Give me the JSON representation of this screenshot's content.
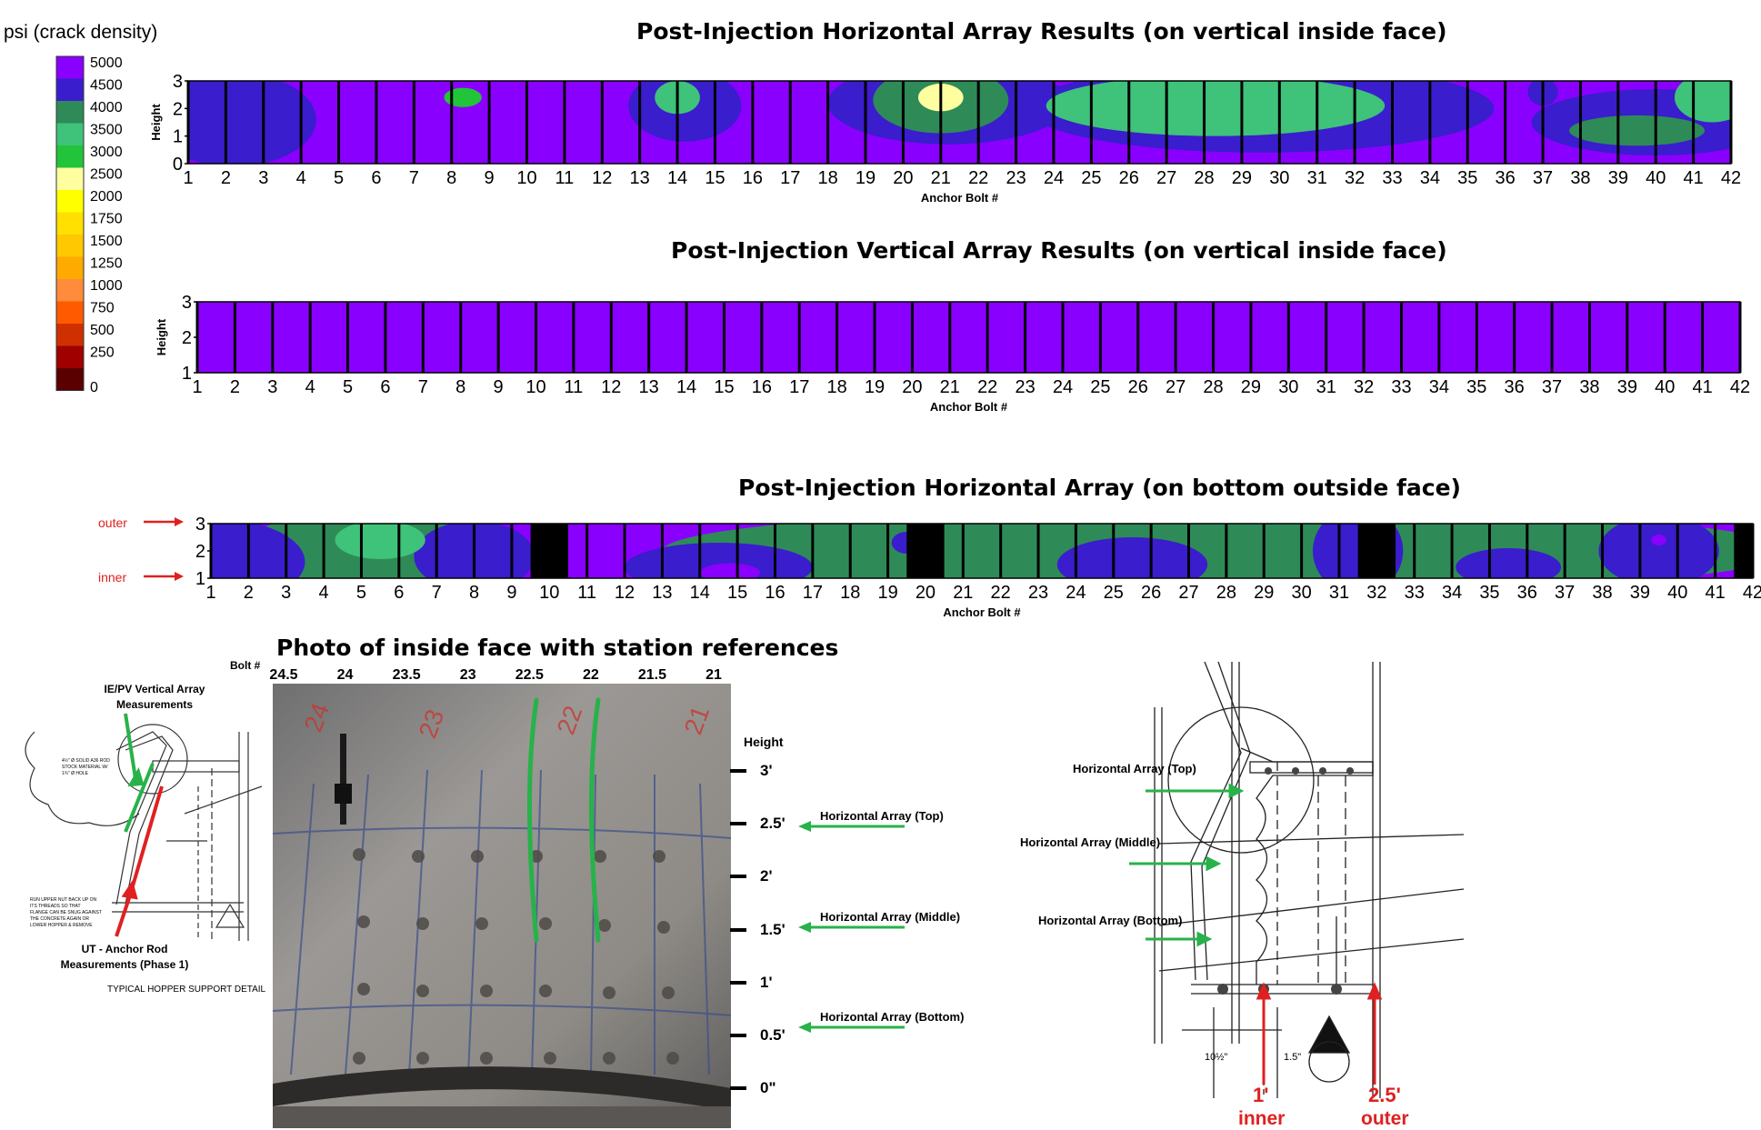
{
  "legend": {
    "title": "psi  (crack density)",
    "levels": [
      "5000",
      "4500",
      "4000",
      "3500",
      "3000",
      "2500",
      "2000",
      "1750",
      "1500",
      "1250",
      "1000",
      "750",
      "500",
      "250",
      "0"
    ],
    "colors": [
      "#8a00ff",
      "#3a1dcc",
      "#2e8b57",
      "#3fc27a",
      "#22c43a",
      "#ffffa0",
      "#ffff00",
      "#ffe000",
      "#ffc800",
      "#ffaa00",
      "#ff8c3a",
      "#ff5a00",
      "#d03000",
      "#a00000",
      "#5a0000"
    ]
  },
  "chart_data": [
    {
      "type": "heatmap",
      "title": "Post-Injection Horizontal Array Results (on vertical inside face)",
      "xlabel": "Anchor Bolt #",
      "ylabel": "Height",
      "x_ticks": [
        "1",
        "2",
        "3",
        "4",
        "5",
        "6",
        "7",
        "8",
        "9",
        "10",
        "11",
        "12",
        "13",
        "14",
        "15",
        "16",
        "17",
        "18",
        "19",
        "20",
        "21",
        "22",
        "23",
        "24",
        "25",
        "26",
        "27",
        "28",
        "29",
        "30",
        "31",
        "32",
        "33",
        "34",
        "35",
        "36",
        "37",
        "38",
        "39",
        "40",
        "41",
        "42"
      ],
      "y_ticks": [
        "0",
        "1",
        "2",
        "3"
      ],
      "xlim": [
        1,
        42
      ],
      "ylim": [
        0,
        3
      ],
      "features": [
        {
          "x": 2.5,
          "y": 2.6,
          "level": "4500"
        },
        {
          "x": 14,
          "y": 2.4,
          "level": "3500"
        },
        {
          "x": 8.3,
          "y": 2.4,
          "level": "3000"
        },
        {
          "x": 21,
          "y": 2.3,
          "level": "4000"
        },
        {
          "x": 21,
          "y": 2.4,
          "level": "2500"
        },
        {
          "x": 28.3,
          "y": 2.1,
          "level": "3500"
        },
        {
          "x": 39.5,
          "y": 1.2,
          "level": "4000"
        },
        {
          "x": 41.5,
          "y": 2.4,
          "level": "3500"
        }
      ]
    },
    {
      "type": "heatmap",
      "title": "Post-Injection Vertical Array Results (on vertical inside face)",
      "xlabel": "Anchor Bolt #",
      "ylabel": "Height",
      "x_ticks": [
        "1",
        "2",
        "3",
        "4",
        "5",
        "6",
        "7",
        "8",
        "9",
        "10",
        "11",
        "12",
        "13",
        "14",
        "15",
        "16",
        "17",
        "18",
        "19",
        "20",
        "21",
        "22",
        "23",
        "24",
        "25",
        "26",
        "27",
        "28",
        "29",
        "30",
        "31",
        "32",
        "33",
        "34",
        "35",
        "36",
        "37",
        "38",
        "39",
        "40",
        "41",
        "42"
      ],
      "y_ticks": [
        "1",
        "2",
        "3"
      ],
      "xlim": [
        1,
        42
      ],
      "ylim": [
        1,
        3
      ],
      "uniform_level": "5000"
    },
    {
      "type": "heatmap",
      "title": "Post-Injection Horizontal Array (on bottom outside face)",
      "xlabel": "Anchor Bolt #",
      "ylabel": "",
      "x_ticks": [
        "1",
        "2",
        "3",
        "4",
        "5",
        "6",
        "7",
        "8",
        "9",
        "10",
        "11",
        "12",
        "13",
        "14",
        "15",
        "16",
        "17",
        "18",
        "19",
        "20",
        "21",
        "22",
        "23",
        "24",
        "25",
        "26",
        "27",
        "28",
        "29",
        "30",
        "31",
        "32",
        "33",
        "34",
        "35",
        "36",
        "37",
        "38",
        "39",
        "40",
        "41",
        "42"
      ],
      "y_ticks": [
        "1",
        "2",
        "3"
      ],
      "xlim": [
        1,
        42
      ],
      "ylim": [
        1,
        3
      ],
      "row_labels": [
        "outer",
        "inner"
      ],
      "no_data_columns": [
        10,
        20,
        32,
        42
      ],
      "features": [
        {
          "x": 5.5,
          "y": 2.4,
          "level": "3500"
        },
        {
          "x": 14.8,
          "y": 1.2,
          "level": "5000"
        },
        {
          "x": 19.5,
          "y": 2.3,
          "level": "4500"
        },
        {
          "x": 35.5,
          "y": 1.4,
          "level": "4500"
        },
        {
          "x": 39.5,
          "y": 2.4,
          "level": "5000"
        }
      ]
    }
  ],
  "photo": {
    "title": "Photo of inside face with station references",
    "bolt_label": "Bolt #",
    "bolt_ticks": [
      "24.5",
      "24",
      "23.5",
      "23",
      "22.5",
      "22",
      "21.5",
      "21"
    ],
    "wall_markings": [
      "24",
      "23",
      "22",
      "21"
    ],
    "height_label": "Height",
    "height_ticks": [
      "3'",
      "2.5'",
      "2'",
      "1.5'",
      "1'",
      "0.5'",
      "0\""
    ],
    "arrow_labels": [
      "Horizontal Array (Top)",
      "Horizontal Array (Middle)",
      "Horizontal Array (Bottom)"
    ]
  },
  "left_detail": {
    "green_label": "IE/PV Vertical Array Measurements",
    "red_label": "UT - Anchor Rod Measurements (Phase 1)",
    "caption": "TYPICAL HOPPER SUPPORT DETAIL",
    "note_text": "RUN UPPER NUT BACK UP ON ITS THREADS SO THAT FLANGE CAN BE SNUG AGAINST THE CONCRETE AGAIN OR LOWER HOPPER & REMOVE",
    "rod_note": "4½\" Ø SOLID A36 ROD STOCK MATERIAL W/ 1¾\" Ø HOLE"
  },
  "right_detail": {
    "labels": [
      "Horizontal Array (Top)",
      "Horizontal Array (Middle)",
      "Horizontal Array (Bottom)"
    ],
    "dim1": "1'",
    "dim1_label": "inner",
    "dim2": "2.5'",
    "dim2_label": "outer",
    "dim_small_a": "10½\"",
    "dim_small_b": "1.5\""
  }
}
